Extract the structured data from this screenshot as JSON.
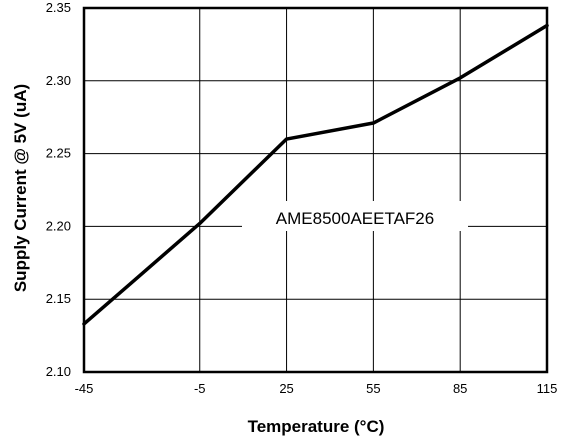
{
  "chart_data": {
    "type": "line",
    "title": "",
    "xlabel": "Temperature (°C)",
    "ylabel": "Supply Current @ 5V (uA)",
    "x": [
      -45,
      -5,
      25,
      55,
      85,
      115
    ],
    "xticks": [
      "-45",
      "-5",
      "25",
      "55",
      "85",
      "115"
    ],
    "yticks": [
      "2.10",
      "2.15",
      "2.20",
      "2.25",
      "2.30",
      "2.35"
    ],
    "xlim": [
      -45,
      115
    ],
    "ylim": [
      2.1,
      2.35
    ],
    "grid": true,
    "series": [
      {
        "values": [
          2.133,
          2.202,
          2.26,
          2.271,
          2.302,
          2.338
        ]
      }
    ],
    "annotation": "AME8500AEETAF26",
    "line_color": "#000000"
  }
}
